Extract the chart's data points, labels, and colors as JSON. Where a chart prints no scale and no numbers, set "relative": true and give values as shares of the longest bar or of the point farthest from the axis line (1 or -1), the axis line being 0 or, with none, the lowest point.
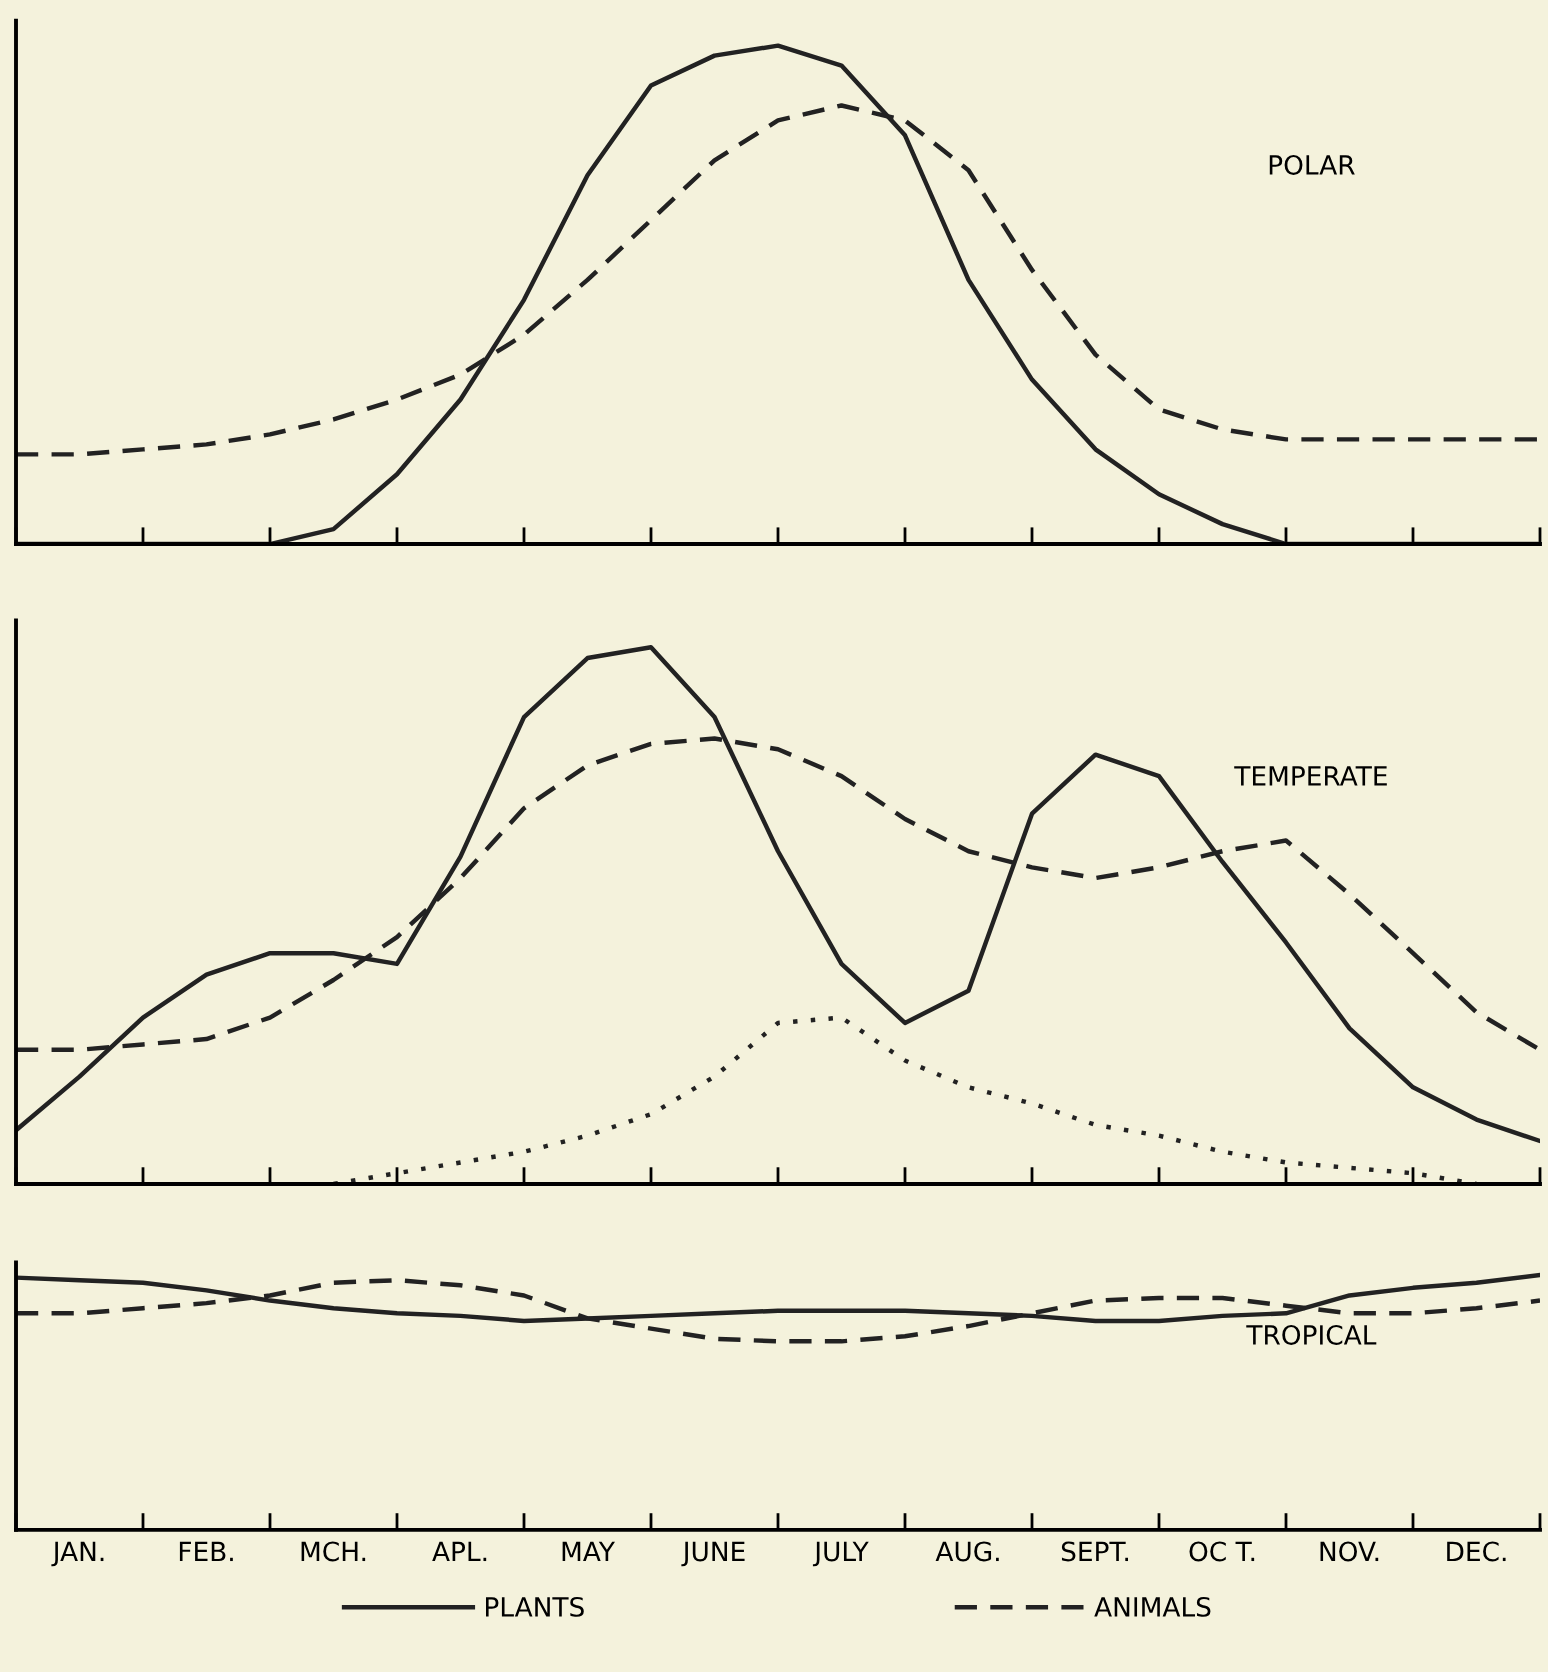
{
  "chart_data": [
    {
      "type": "line",
      "title": "POLAR",
      "relative": true,
      "tick_labels": false,
      "categories": [
        null,
        null,
        null,
        null,
        null,
        null,
        null,
        null,
        null,
        null,
        null,
        null,
        null,
        null,
        null,
        null,
        null,
        null,
        null,
        null,
        null,
        null,
        null,
        null,
        null
      ],
      "series": [
        {
          "color": "#222222",
          "line_style": "solid",
          "values": [
            0,
            0,
            0,
            0,
            0,
            0.03,
            0.14,
            0.29,
            0.49,
            0.74,
            0.92,
            0.98,
            1,
            0.96,
            0.82,
            0.53,
            0.33,
            0.19,
            0.1,
            0.04,
            0,
            0,
            0,
            0,
            0
          ]
        },
        {
          "color": "#222222",
          "line_style": "dashed",
          "values": [
            0.18,
            0.18,
            0.19,
            0.2,
            0.22,
            0.25,
            0.29,
            0.34,
            0.42,
            0.53,
            0.65,
            0.77,
            0.85,
            0.88,
            0.85,
            0.75,
            0.55,
            0.38,
            0.27,
            0.23,
            0.21,
            0.21,
            0.21,
            0.21,
            0.21
          ]
        }
      ]
    },
    {
      "type": "line",
      "title": "TEMPERATE",
      "relative": true,
      "tick_labels": false,
      "categories": [
        null,
        null,
        null,
        null,
        null,
        null,
        null,
        null,
        null,
        null,
        null,
        null,
        null,
        null,
        null,
        null,
        null,
        null,
        null,
        null,
        null,
        null,
        null,
        null,
        null
      ],
      "series": [
        {
          "color": "#222222",
          "line_style": "solid",
          "values": [
            0.1,
            0.2,
            0.31,
            0.39,
            0.43,
            0.43,
            0.41,
            0.61,
            0.87,
            0.98,
            1,
            0.87,
            0.62,
            0.41,
            0.3,
            0.36,
            0.69,
            0.8,
            0.76,
            0.6,
            0.45,
            0.29,
            0.18,
            0.12,
            0.08
          ]
        },
        {
          "color": "#222222",
          "line_style": "dashed",
          "values": [
            0.25,
            0.25,
            0.26,
            0.27,
            0.31,
            0.38,
            0.46,
            0.57,
            0.7,
            0.78,
            0.82,
            0.83,
            0.81,
            0.76,
            0.68,
            0.62,
            0.59,
            0.57,
            0.59,
            0.62,
            0.64,
            0.54,
            0.43,
            0.32,
            0.25
          ]
        },
        {
          "color": "#222222",
          "line_style": "dotted",
          "values": [
            null,
            null,
            null,
            null,
            null,
            0,
            0.02,
            0.04,
            0.06,
            0.09,
            0.13,
            0.2,
            0.3,
            0.31,
            0.23,
            0.18,
            0.15,
            0.11,
            0.09,
            0.06,
            0.04,
            0.03,
            0.02,
            0,
            null
          ]
        }
      ]
    },
    {
      "type": "line",
      "title": "TROPICAL",
      "relative": true,
      "tick_labels": "x",
      "legend": "bottom",
      "categories": [
        null,
        "JAN.",
        null,
        "FEB.",
        null,
        "MCH.",
        null,
        "APL.",
        null,
        "MAY",
        null,
        "JUNE",
        null,
        "JULY",
        null,
        "AUG.",
        null,
        "SEPT.",
        null,
        "OC T.",
        null,
        "NOV.",
        null,
        "DEC.",
        null
      ],
      "series": [
        {
          "name": "PLANTS",
          "color": "#222222",
          "line_style": "solid",
          "values": [
            0.99,
            0.98,
            0.97,
            0.94,
            0.9,
            0.87,
            0.85,
            0.84,
            0.82,
            0.83,
            0.84,
            0.85,
            0.86,
            0.86,
            0.86,
            0.85,
            0.84,
            0.82,
            0.82,
            0.84,
            0.85,
            0.92,
            0.95,
            0.97,
            1
          ]
        },
        {
          "name": "ANIMALS",
          "color": "#222222",
          "line_style": "dashed",
          "values": [
            0.85,
            0.85,
            0.87,
            0.89,
            0.92,
            0.97,
            0.98,
            0.96,
            0.92,
            0.83,
            0.79,
            0.75,
            0.74,
            0.74,
            0.76,
            0.8,
            0.85,
            0.9,
            0.91,
            0.91,
            0.88,
            0.85,
            0.85,
            0.87,
            0.9
          ]
        }
      ]
    }
  ]
}
